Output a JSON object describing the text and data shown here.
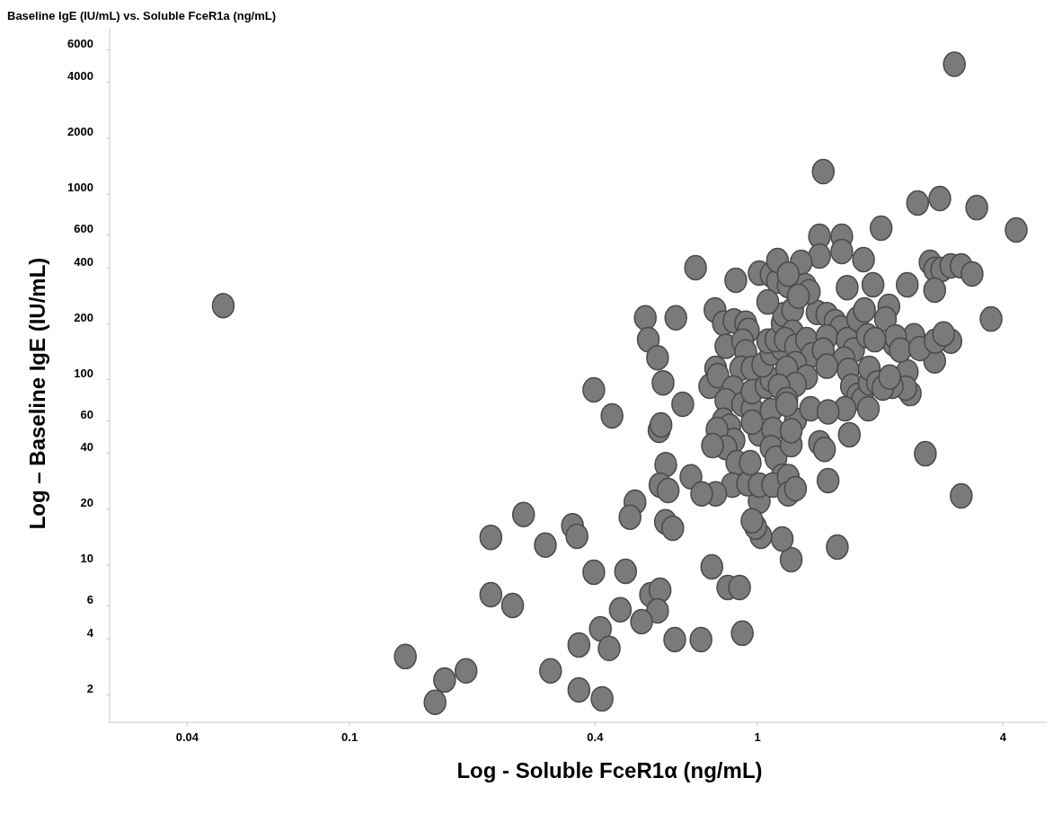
{
  "chart_data": {
    "type": "scatter",
    "title": "Baseline IgE (IU/mL) vs. Soluble FceR1a (ng/mL)",
    "xlabel": "Log - Soluble FceR1α (ng/mL)",
    "ylabel": "Log – Baseline IgE (IU/mL)",
    "log": "xy",
    "grid": false,
    "marker": "circle",
    "xlim": [
      0.0258,
      5.12
    ],
    "ylim": [
      1.42,
      7780
    ],
    "xticks": [
      0.04,
      0.1,
      0.4,
      1,
      4
    ],
    "yticks": [
      2,
      4,
      6,
      10,
      20,
      40,
      60,
      100,
      200,
      400,
      600,
      1000,
      2000,
      4000,
      6000
    ],
    "series": [
      {
        "color": "#7a7a7a",
        "x": [
          0.049,
          3.04,
          1.45,
          4.31,
          3.45,
          2.8,
          2.47,
          2.01,
          1.42,
          1.61,
          1.42,
          1.61,
          1.82,
          0.705,
          1.28,
          1.01,
          1.08,
          1.12,
          0.885,
          1.19,
          1.31,
          1.66,
          1.92,
          2.33,
          2.65,
          2.72,
          2.83,
          2.98,
          3.16,
          3.36,
          2.72,
          2.98,
          3.74,
          2.72,
          2.42,
          2.1,
          2.06,
          2.16,
          2.18,
          2.58,
          3.16,
          2.37,
          2.33,
          0.531,
          0.631,
          0.54,
          0.569,
          0.587,
          0.656,
          0.397,
          0.44,
          0.574,
          0.58,
          0.596,
          0.577,
          0.604,
          0.687,
          0.501,
          0.487,
          0.595,
          0.62,
          0.267,
          0.222,
          0.302,
          0.352,
          0.361,
          0.397,
          0.475,
          0.222,
          0.251,
          0.547,
          0.577,
          0.569,
          0.461,
          0.52,
          0.412,
          0.365,
          0.433,
          0.627,
          0.727,
          0.918,
          0.137,
          0.171,
          0.193,
          0.162,
          0.311,
          0.365,
          0.416,
          0.773,
          0.846,
          0.904,
          1.01,
          0.787,
          0.825,
          0.764,
          0.79,
          0.8,
          0.837,
          0.876,
          0.936,
          0.95,
          0.92,
          0.936,
          0.91,
          0.97,
          0.872,
          0.837,
          0.92,
          0.97,
          0.825,
          0.855,
          0.876,
          0.796,
          0.837,
          0.776,
          0.89,
          0.868,
          0.79,
          0.73,
          0.946,
          1.01,
          0.96,
          1.01,
          0.97,
          0.97,
          1.05,
          1.08,
          1.03,
          1.08,
          1.15,
          1.06,
          1.11,
          1.15,
          1.16,
          1.06,
          1.22,
          1.22,
          1.17,
          1.24,
          1.32,
          1.36,
          1.24,
          1.32,
          1.18,
          1.24,
          1.13,
          1.18,
          1.08,
          1.09,
          1.08,
          1.11,
          1.15,
          1.09,
          1.19,
          1.19,
          1.24,
          1.24,
          1.21,
          1.18,
          1.4,
          1.48,
          1.55,
          1.6,
          1.48,
          1.45,
          1.66,
          1.72,
          1.76,
          1.83,
          1.86,
          1.63,
          1.67,
          1.7,
          1.76,
          1.81,
          1.64,
          1.87,
          1.35,
          1.49,
          1.21,
          1.42,
          1.46,
          1.68,
          1.49,
          1.57,
          1.21,
          1.15,
          1.02,
          0.99,
          0.97,
          1.88,
          1.88,
          1.94,
          1.48,
          1.34,
          1.12,
          1.19,
          1.26,
          2.24,
          2.5,
          2.31,
          2.14,
          2.73,
          2.86,
          1.97,
          2.03,
          2.11
        ],
        "values": [
          250,
          5010,
          1320,
          640,
          845,
          946,
          895,
          655,
          592,
          592,
          463,
          490,
          443,
          401,
          428,
          375,
          367,
          339,
          343,
          321,
          321,
          313,
          324,
          324,
          428,
          392,
          392,
          410,
          410,
          371,
          303,
          161,
          212,
          126,
          172,
          248,
          212,
          156,
          170,
          39.8,
          23.6,
          84,
          110,
          215,
          215,
          164,
          131,
          96,
          73.6,
          88,
          63.7,
          53.2,
          56.9,
          34.8,
          27,
          25.2,
          29.9,
          21.8,
          18.1,
          17.1,
          15.8,
          18.7,
          14.1,
          12.8,
          16.3,
          14.3,
          9.15,
          9.25,
          6.92,
          6.05,
          6.92,
          7.31,
          5.66,
          5.74,
          4.95,
          4.53,
          3.71,
          3.55,
          3.96,
          3.96,
          4.29,
          3.21,
          2.4,
          2.69,
          1.82,
          2.69,
          2.12,
          1.9,
          9.78,
          7.57,
          7.57,
          22.1,
          237,
          201,
          92,
          115,
          105,
          151,
          207,
          201,
          184,
          161,
          141,
          115,
          115,
          90,
          77,
          73.6,
          69.6,
          60.3,
          56,
          47,
          53.8,
          43,
          44,
          35.6,
          27,
          24.2,
          24.2,
          27.4,
          27,
          35.6,
          51,
          58.9,
          86,
          92,
          100,
          120,
          139,
          147,
          161,
          164,
          201,
          224,
          262,
          237,
          180,
          164,
          151,
          164,
          136,
          122,
          103,
          115,
          94,
          92,
          78,
          68,
          53.8,
          43,
          37.7,
          30.1,
          27,
          30,
          24.2,
          25.8,
          60.3,
          44.6,
          73.6,
          230,
          224,
          205,
          190,
          170,
          144,
          164,
          144,
          212,
          237,
          172,
          129,
          112,
          92,
          82,
          78,
          69.6,
          69.6,
          69.6,
          67,
          53,
          45.6,
          42,
          50.4,
          28.5,
          12.5,
          10.7,
          13.8,
          14.3,
          16.0,
          17.3,
          96,
          115,
          164,
          118,
          297,
          438,
          370,
          281,
          144,
          147,
          90,
          92,
          161,
          176,
          96,
          90,
          103
        ]
      }
    ]
  }
}
